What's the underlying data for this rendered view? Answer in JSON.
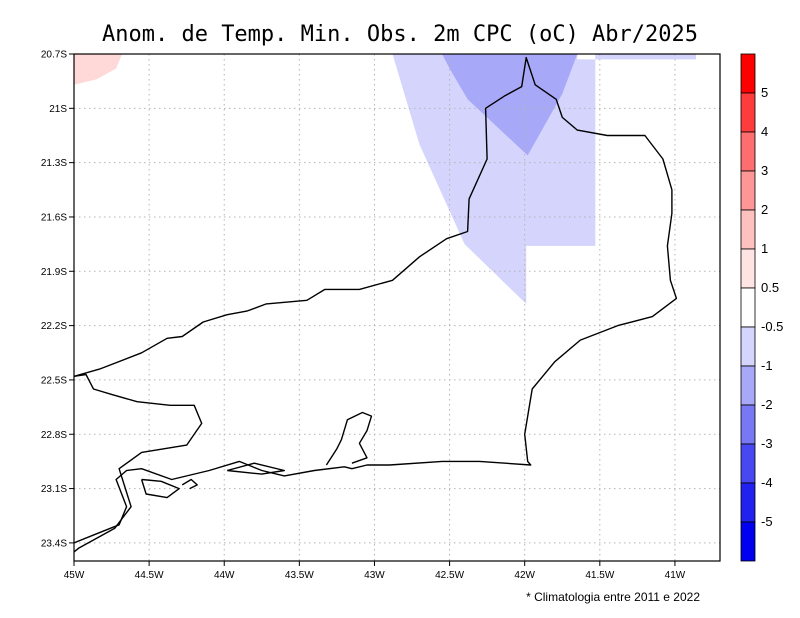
{
  "title": "Anom. de Temp. Min. Obs. 2m CPC (oC) Abr/2025",
  "footnote": "* Climatologia entre 2011 e 2022",
  "map": {
    "lon_range": [
      -45,
      -40.7
    ],
    "lat_range": [
      -23.5,
      -20.7
    ],
    "lon_ticks": [
      {
        "value": -45,
        "label": "45W"
      },
      {
        "value": -44.5,
        "label": "44.5W"
      },
      {
        "value": -44,
        "label": "44W"
      },
      {
        "value": -43.5,
        "label": "43.5W"
      },
      {
        "value": -43,
        "label": "43W"
      },
      {
        "value": -42.5,
        "label": "42.5W"
      },
      {
        "value": -42,
        "label": "42W"
      },
      {
        "value": -41.5,
        "label": "41.5W"
      },
      {
        "value": -41,
        "label": "41W"
      }
    ],
    "lat_ticks": [
      {
        "value": -20.7,
        "label": "20.7S"
      },
      {
        "value": -21,
        "label": "21S"
      },
      {
        "value": -21.3,
        "label": "21.3S"
      },
      {
        "value": -21.6,
        "label": "21.6S"
      },
      {
        "value": -21.9,
        "label": "21.9S"
      },
      {
        "value": -22.2,
        "label": "22.2S"
      },
      {
        "value": -22.5,
        "label": "22.5S"
      },
      {
        "value": -22.8,
        "label": "22.8S"
      },
      {
        "value": -23.1,
        "label": "23.1S"
      },
      {
        "value": -23.4,
        "label": "23.4S"
      }
    ],
    "grid": true
  },
  "colorbar": {
    "levels": [
      "5",
      "4",
      "3",
      "2",
      "1",
      "0.5",
      "-0.5",
      "-1",
      "-2",
      "-3",
      "-4",
      "-5"
    ],
    "colors": [
      "#ff0000",
      "#ff3c3c",
      "#ff6e6e",
      "#ff9696",
      "#ffc0c0",
      "#ffe4e4",
      "#ffffff",
      "#d4d4fc",
      "#a8a8f8",
      "#7878f4",
      "#4848f2",
      "#2222f0",
      "#0000ee"
    ]
  },
  "anomaly_areas": [
    {
      "value_range": "0.5 to 1",
      "color": "#ffd8d8",
      "vertices": [
        [
          -45,
          -20.7
        ],
        [
          -44.68,
          -20.7
        ],
        [
          -44.72,
          -20.78
        ],
        [
          -44.85,
          -20.84
        ],
        [
          -45,
          -20.87
        ]
      ]
    },
    {
      "value_range": "-1 to -0.5",
      "color": "#d4d4fc",
      "vertices": [
        [
          -42.88,
          -20.7
        ],
        [
          -41.65,
          -20.7
        ],
        [
          -41.65,
          -20.73
        ],
        [
          -40.86,
          -20.73
        ],
        [
          -40.86,
          -20.7
        ],
        [
          -41.53,
          -20.7
        ],
        [
          -41.53,
          -21.76
        ],
        [
          -41.99,
          -21.76
        ],
        [
          -41.99,
          -22.08
        ],
        [
          -42.4,
          -21.75
        ],
        [
          -42.7,
          -21.2
        ]
      ]
    },
    {
      "value_range": "-2 to -1",
      "color": "#a8a8f8",
      "vertices": [
        [
          -42.55,
          -20.7
        ],
        [
          -41.65,
          -20.7
        ],
        [
          -41.75,
          -20.92
        ],
        [
          -41.98,
          -21.26
        ],
        [
          -42.38,
          -20.95
        ],
        [
          -42.5,
          -20.78
        ]
      ]
    }
  ],
  "coastline": [
    [
      [
        -45,
        -22.48
      ],
      [
        -44.83,
        -22.44
      ],
      [
        -44.55,
        -22.35
      ],
      [
        -44.38,
        -22.27
      ],
      [
        -44.28,
        -22.26
      ],
      [
        -44.14,
        -22.18
      ],
      [
        -43.98,
        -22.14
      ],
      [
        -43.85,
        -22.12
      ],
      [
        -43.72,
        -22.08
      ],
      [
        -43.45,
        -22.06
      ],
      [
        -43.33,
        -22.0
      ],
      [
        -43.1,
        -22.0
      ],
      [
        -42.88,
        -21.95
      ],
      [
        -42.7,
        -21.82
      ],
      [
        -42.52,
        -21.72
      ],
      [
        -42.38,
        -21.68
      ],
      [
        -42.37,
        -21.5
      ],
      [
        -42.25,
        -21.28
      ],
      [
        -42.26,
        -21.0
      ],
      [
        -42.13,
        -20.93
      ],
      [
        -42.02,
        -20.88
      ],
      [
        -41.99,
        -20.72
      ],
      [
        -41.93,
        -20.87
      ],
      [
        -41.79,
        -20.95
      ],
      [
        -41.75,
        -21.05
      ],
      [
        -41.65,
        -21.12
      ],
      [
        -41.45,
        -21.15
      ],
      [
        -41.2,
        -21.15
      ],
      [
        -41.08,
        -21.28
      ],
      [
        -41.02,
        -21.45
      ],
      [
        -41.02,
        -21.58
      ],
      [
        -41.05,
        -21.76
      ],
      [
        -41.03,
        -21.95
      ],
      [
        -40.99,
        -22.05
      ],
      [
        -41.15,
        -22.15
      ],
      [
        -41.38,
        -22.2
      ],
      [
        -41.63,
        -22.28
      ],
      [
        -41.8,
        -22.4
      ],
      [
        -41.95,
        -22.55
      ],
      [
        -42.0,
        -22.8
      ],
      [
        -41.98,
        -22.95
      ],
      [
        -41.96,
        -22.97
      ],
      [
        -42.3,
        -22.95
      ],
      [
        -42.55,
        -22.95
      ],
      [
        -42.9,
        -22.97
      ],
      [
        -43.05,
        -22.97
      ],
      [
        -43.15,
        -22.99
      ],
      [
        -43.2,
        -22.98
      ],
      [
        -43.4,
        -23.0
      ],
      [
        -43.6,
        -23.03
      ],
      [
        -43.75,
        -23.0
      ],
      [
        -43.9,
        -22.95
      ],
      [
        -44.1,
        -23.0
      ],
      [
        -44.35,
        -23.05
      ],
      [
        -44.55,
        -22.99
      ],
      [
        -44.65,
        -23.0
      ],
      [
        -44.72,
        -23.05
      ],
      [
        -44.65,
        -23.2
      ],
      [
        -44.7,
        -23.3
      ],
      [
        -44.85,
        -23.35
      ],
      [
        -45.0,
        -23.4
      ]
    ],
    [
      [
        -45,
        -22.48
      ],
      [
        -44.92,
        -22.47
      ],
      [
        -44.87,
        -22.55
      ],
      [
        -44.75,
        -22.58
      ],
      [
        -44.58,
        -22.62
      ],
      [
        -44.36,
        -22.64
      ],
      [
        -44.2,
        -22.64
      ],
      [
        -44.15,
        -22.74
      ],
      [
        -44.25,
        -22.86
      ],
      [
        -44.55,
        -22.9
      ],
      [
        -44.7,
        -22.99
      ],
      [
        -44.62,
        -23.2
      ],
      [
        -44.73,
        -23.32
      ],
      [
        -44.97,
        -23.43
      ],
      [
        -45.0,
        -23.45
      ]
    ],
    [
      [
        -43.98,
        -23.0
      ],
      [
        -43.8,
        -22.96
      ],
      [
        -43.6,
        -23.0
      ],
      [
        -43.75,
        -23.02
      ],
      [
        -43.98,
        -23.0
      ]
    ],
    [
      [
        -43.32,
        -22.97
      ],
      [
        -43.25,
        -22.88
      ],
      [
        -43.22,
        -22.83
      ],
      [
        -43.18,
        -22.72
      ],
      [
        -43.08,
        -22.68
      ],
      [
        -43.02,
        -22.7
      ],
      [
        -43.05,
        -22.78
      ],
      [
        -43.1,
        -22.85
      ],
      [
        -43.05,
        -22.93
      ],
      [
        -43.15,
        -22.96
      ]
    ],
    [
      [
        -44.55,
        -23.05
      ],
      [
        -44.42,
        -23.06
      ],
      [
        -44.3,
        -23.1
      ],
      [
        -44.38,
        -23.15
      ],
      [
        -44.52,
        -23.13
      ],
      [
        -44.55,
        -23.05
      ]
    ],
    [
      [
        -44.28,
        -23.08
      ],
      [
        -44.22,
        -23.05
      ],
      [
        -44.18,
        -23.08
      ],
      [
        -44.23,
        -23.1
      ]
    ]
  ]
}
